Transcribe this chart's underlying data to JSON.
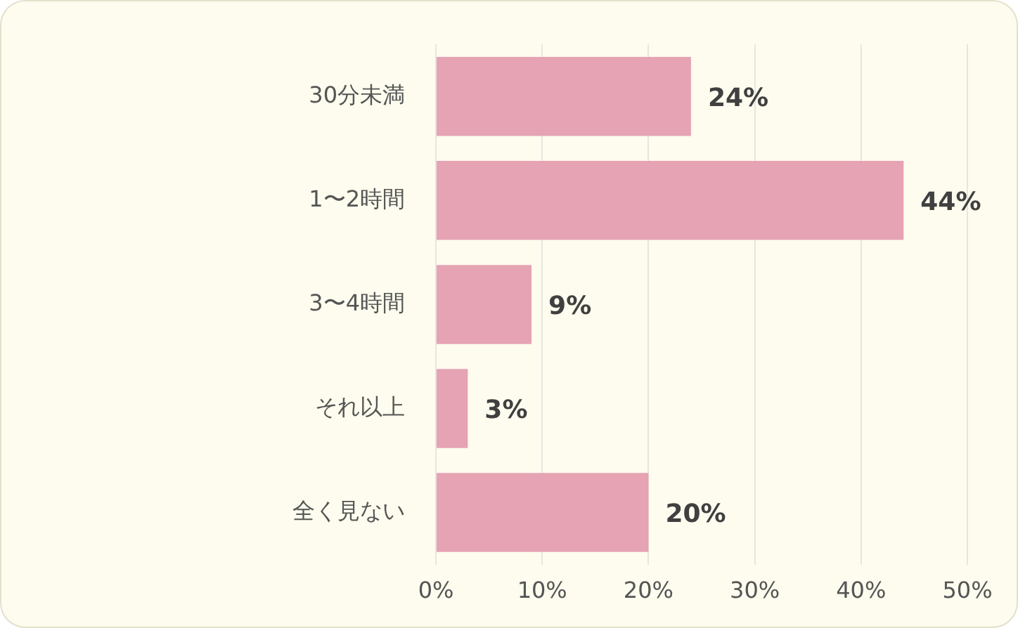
{
  "chart_data": {
    "type": "bar",
    "orientation": "horizontal",
    "categories": [
      "30分未満",
      "1〜2時間",
      "3〜4時間",
      "それ以上",
      "全く見ない"
    ],
    "values": [
      24,
      44,
      9,
      3,
      20
    ],
    "color": "#e5a3b3",
    "value_labels": [
      "24%",
      "44%",
      "9%",
      "3%",
      "20%"
    ],
    "xlim": [
      0,
      50
    ],
    "xticks": [
      {
        "value": 0,
        "label": "0%"
      },
      {
        "value": 10,
        "label": "10%"
      },
      {
        "value": 20,
        "label": "20%"
      },
      {
        "value": 30,
        "label": "30%"
      },
      {
        "value": 40,
        "label": "40%"
      },
      {
        "value": 50,
        "label": "50%"
      }
    ],
    "grid": "x",
    "legend": false
  }
}
